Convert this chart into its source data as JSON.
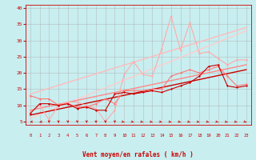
{
  "xlabel": "Vent moyen/en rafales ( km/h )",
  "xlim": [
    -0.5,
    23.5
  ],
  "ylim": [
    4,
    41
  ],
  "yticks": [
    5,
    10,
    15,
    20,
    25,
    30,
    35,
    40
  ],
  "xticks": [
    0,
    1,
    2,
    3,
    4,
    5,
    6,
    7,
    8,
    9,
    10,
    11,
    12,
    13,
    14,
    15,
    16,
    17,
    18,
    19,
    20,
    21,
    22,
    23
  ],
  "bg_color": "#c8eef0",
  "grid_color": "#b0b0b0",
  "line1": {
    "x": [
      0,
      1,
      2,
      3,
      4,
      5,
      6,
      7,
      8,
      9,
      10,
      11,
      12,
      13,
      14,
      15,
      16,
      17,
      18,
      19,
      20,
      21,
      22,
      23
    ],
    "y": [
      7.5,
      10.5,
      10.5,
      10.0,
      10.5,
      9.0,
      9.5,
      8.5,
      8.5,
      13.5,
      14.0,
      13.5,
      14.0,
      14.5,
      14.0,
      15.0,
      16.0,
      17.0,
      19.0,
      22.0,
      22.5,
      16.0,
      15.5,
      16.0
    ],
    "color": "#cc0000",
    "lw": 0.8,
    "marker": "D",
    "ms": 1.5
  },
  "line2": {
    "x": [
      0,
      1,
      2,
      3,
      4,
      5,
      6,
      7,
      8,
      9,
      10,
      11,
      12,
      13,
      14,
      15,
      16,
      17,
      18,
      19,
      20,
      21,
      22,
      23
    ],
    "y": [
      8.0,
      10.0,
      5.5,
      10.0,
      11.0,
      11.0,
      10.0,
      9.0,
      5.0,
      8.5,
      19.5,
      23.5,
      19.5,
      19.0,
      27.5,
      37.5,
      27.0,
      35.5,
      26.0,
      26.5,
      24.5,
      22.5,
      24.0,
      24.0
    ],
    "color": "#ffaaaa",
    "lw": 0.8,
    "marker": "D",
    "ms": 1.5
  },
  "line3": {
    "x": [
      0,
      1,
      2,
      3,
      4,
      5,
      6,
      7,
      8,
      9,
      10,
      11,
      12,
      13,
      14,
      15,
      16,
      17,
      18,
      19,
      20,
      21,
      22,
      23
    ],
    "y": [
      13.0,
      12.0,
      12.0,
      10.0,
      10.5,
      9.5,
      9.5,
      10.5,
      12.0,
      10.5,
      14.5,
      14.5,
      14.5,
      15.0,
      15.0,
      19.0,
      20.0,
      21.0,
      20.0,
      21.0,
      22.0,
      19.0,
      16.0,
      16.5
    ],
    "color": "#ff7777",
    "lw": 0.8,
    "marker": "D",
    "ms": 1.5
  },
  "regline1": {
    "x": [
      0,
      23
    ],
    "y": [
      7.0,
      21.0
    ],
    "color": "#cc0000",
    "lw": 1.0
  },
  "regline2": {
    "x": [
      0,
      23
    ],
    "y": [
      6.0,
      33.0
    ],
    "color": "#ffcccc",
    "lw": 1.0
  },
  "regline3": {
    "x": [
      0,
      23
    ],
    "y": [
      13.5,
      34.0
    ],
    "color": "#ffbbbb",
    "lw": 1.0
  },
  "regline4": {
    "x": [
      0,
      23
    ],
    "y": [
      8.5,
      22.5
    ],
    "color": "#ff8888",
    "lw": 1.0
  },
  "arrow_color": "#cc0000",
  "arrow_angles": [
    225,
    225,
    270,
    270,
    270,
    270,
    270,
    270,
    270,
    270,
    315,
    315,
    315,
    315,
    315,
    315,
    315,
    315,
    315,
    315,
    315,
    315,
    315,
    315
  ]
}
